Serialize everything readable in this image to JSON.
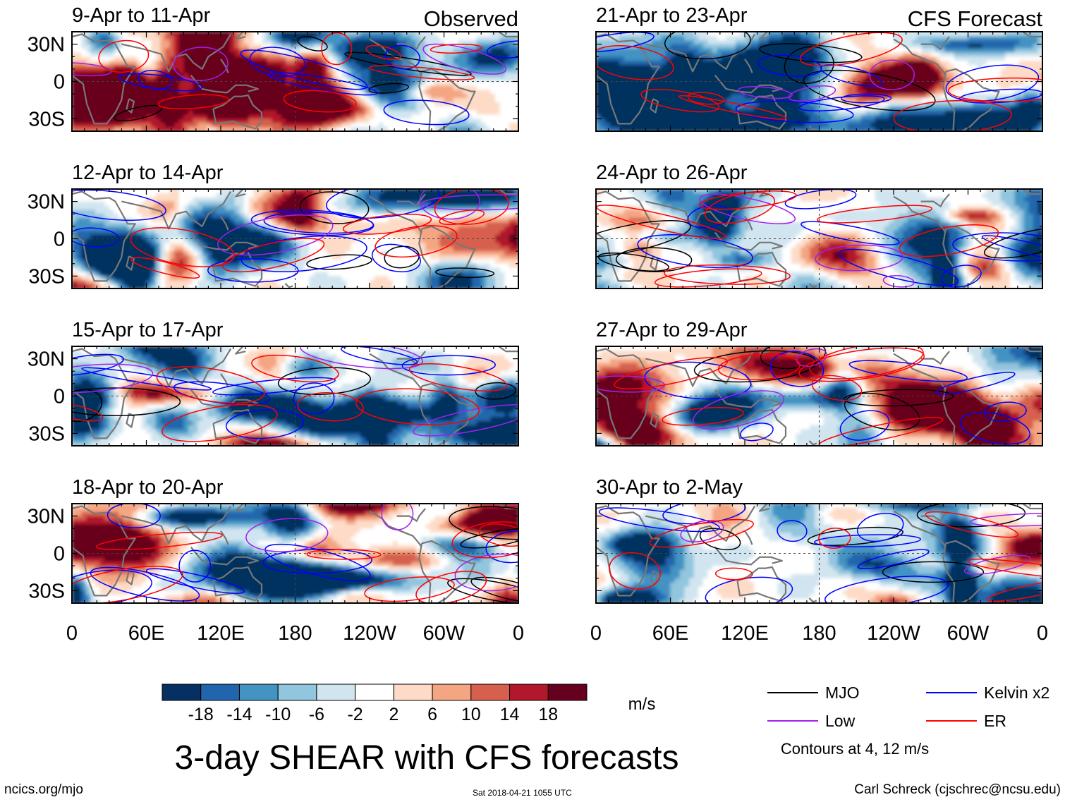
{
  "chart_data": {
    "type": "heatmap",
    "title": "3-day SHEAR with CFS forecasts",
    "units": "m/s",
    "columns": [
      {
        "header": "Observed",
        "panels": [
          {
            "label": "9-Apr to 11-Apr"
          },
          {
            "label": "12-Apr to 14-Apr"
          },
          {
            "label": "15-Apr to 17-Apr"
          },
          {
            "label": "18-Apr to 20-Apr"
          }
        ]
      },
      {
        "header": "CFS Forecast",
        "panels": [
          {
            "label": "21-Apr to 23-Apr"
          },
          {
            "label": "24-Apr to 26-Apr"
          },
          {
            "label": "27-Apr to 29-Apr"
          },
          {
            "label": "30-Apr to 2-May"
          }
        ]
      }
    ],
    "y_ticks": [
      {
        "label": "30N",
        "lat": 30
      },
      {
        "label": "0",
        "lat": 0
      },
      {
        "label": "30S",
        "lat": -30
      }
    ],
    "x_ticks": [
      {
        "label": "0",
        "lon": 0
      },
      {
        "label": "60E",
        "lon": 60
      },
      {
        "label": "120E",
        "lon": 120
      },
      {
        "label": "180",
        "lon": 180
      },
      {
        "label": "120W",
        "lon": 240
      },
      {
        "label": "60W",
        "lon": 300
      },
      {
        "label": "0",
        "lon": 360
      }
    ],
    "lat_range": [
      -40,
      40
    ],
    "lon_range": [
      0,
      360
    ],
    "colorbar": {
      "colors": [
        "#053061",
        "#2166ac",
        "#4393c3",
        "#92c5de",
        "#d1e5f0",
        "#ffffff",
        "#fddbc7",
        "#f4a582",
        "#d6604d",
        "#b2182b",
        "#67001f"
      ],
      "labels": [
        "-18",
        "-14",
        "-10",
        "-6",
        "-2",
        "2",
        "6",
        "10",
        "14",
        "18"
      ]
    },
    "legend": [
      {
        "name": "MJO",
        "color": "#000000"
      },
      {
        "name": "Kelvin x2",
        "color": "#0000ff"
      },
      {
        "name": "Low",
        "color": "#a020f0"
      },
      {
        "name": "ER",
        "color": "#ff0000"
      }
    ],
    "contour_note": "Contours at 4, 12 m/s"
  },
  "footer": {
    "left": "ncics.org/mjo",
    "center": "Sat 2018-04-21 1055 UTC",
    "right": "Carl Schreck (cjschrec@ncsu.edu)"
  }
}
